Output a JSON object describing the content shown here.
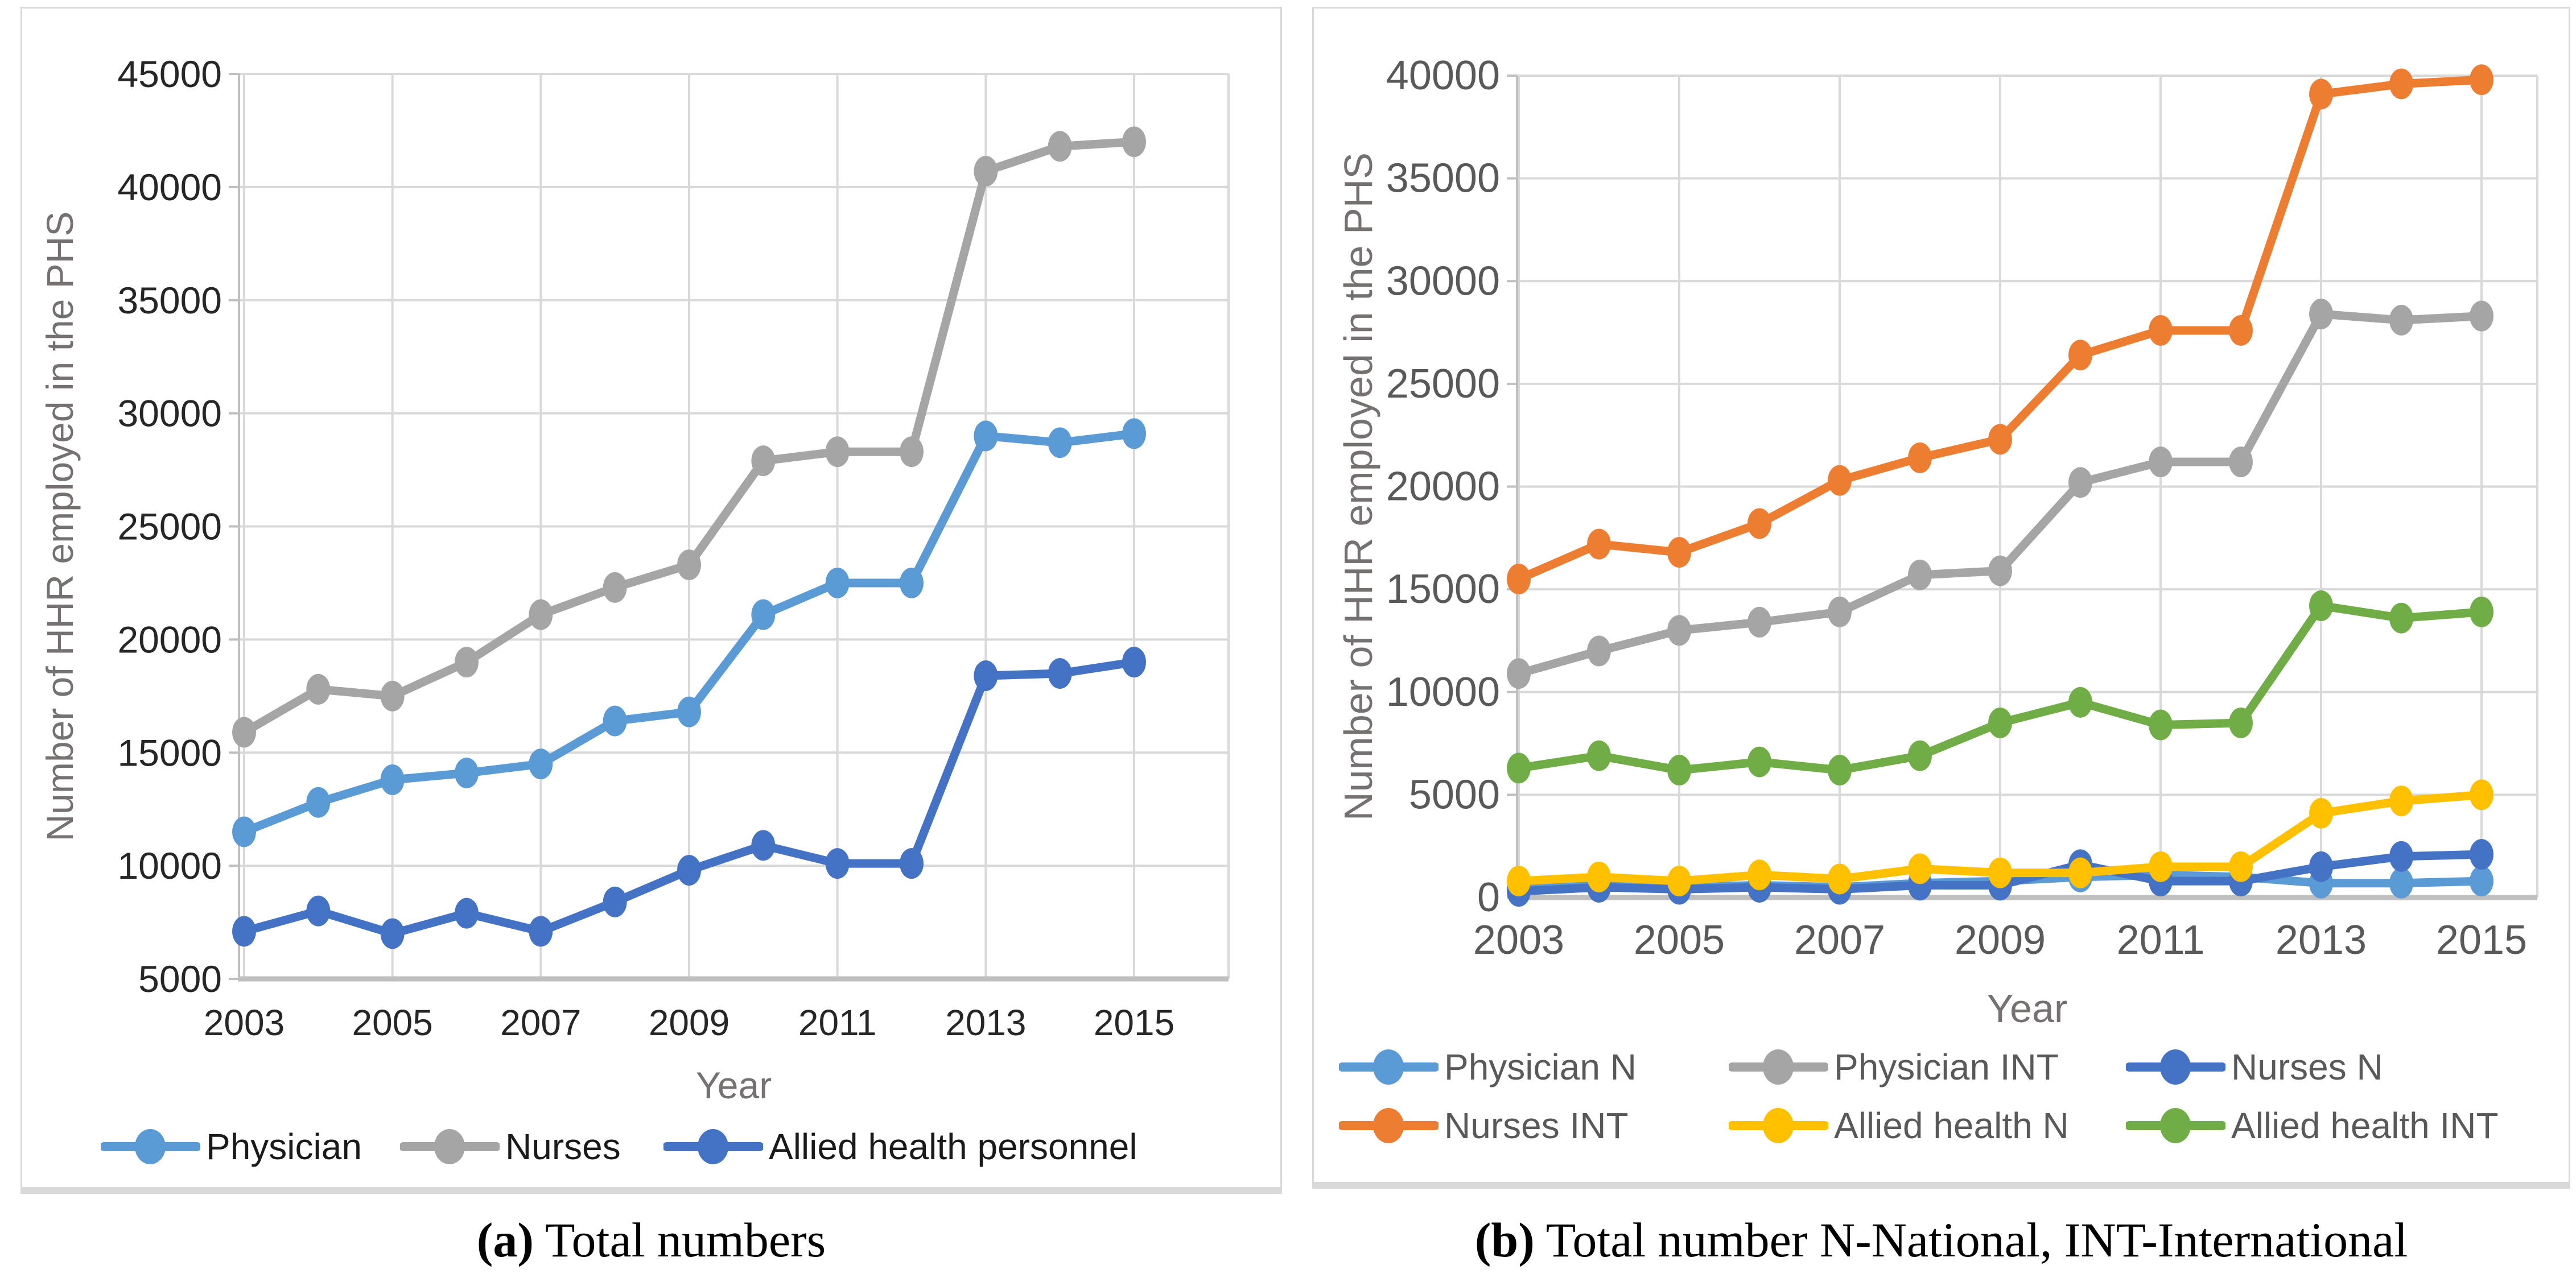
{
  "figure": {
    "panels": [
      {
        "id": "a",
        "caption_label": "(a)",
        "caption_text": "Total numbers",
        "x_axis_title": "Year",
        "y_axis_title": "Number of HHR employed in the PHS"
      },
      {
        "id": "b",
        "caption_label": "(b)",
        "caption_text": "Total number N-National, INT-International",
        "x_axis_title": "Year",
        "y_axis_title": "Number of HHR employed in the PHS"
      }
    ]
  },
  "colors": {
    "gridline": "#D9D9D9",
    "axis_line": "#BFBFBF",
    "tick_text_a": "#262626",
    "tick_text_b": "#595959",
    "axis_title_text": "#767171",
    "legend_text_a": "#1a1a1a",
    "legend_text_b": "#595959"
  },
  "chart_data": [
    {
      "type": "line",
      "title": "",
      "xlabel": "Year",
      "ylabel": "Number of HHR employed in the PHS",
      "x": [
        2003,
        2004,
        2005,
        2006,
        2007,
        2008,
        2009,
        2010,
        2011,
        2012,
        2013,
        2014,
        2015
      ],
      "xticks": [
        2003,
        2005,
        2007,
        2009,
        2011,
        2013,
        2015
      ],
      "ylim": [
        5000,
        45000
      ],
      "ytick_step": 5000,
      "grid": true,
      "legend_position": "bottom",
      "marker": "circle",
      "series": [
        {
          "name": "Physician",
          "color": "#5B9BD5",
          "values": [
            11500,
            12800,
            13800,
            14100,
            14500,
            16400,
            16800,
            21100,
            22500,
            22500,
            29000,
            28700,
            29100
          ]
        },
        {
          "name": "Nurses",
          "color": "#A5A5A5",
          "values": [
            15900,
            17800,
            17500,
            19000,
            21100,
            22300,
            23300,
            27900,
            28300,
            28300,
            40700,
            41800,
            42000
          ]
        },
        {
          "name": "Allied health personnel",
          "color": "#4472C4",
          "values": [
            7100,
            8000,
            7000,
            7900,
            7100,
            8400,
            9800,
            10900,
            10100,
            10100,
            18400,
            18500,
            19000
          ]
        }
      ]
    },
    {
      "type": "line",
      "title": "",
      "xlabel": "Year",
      "ylabel": "Number of HHR employed in the PHS",
      "x": [
        2003,
        2004,
        2005,
        2006,
        2007,
        2008,
        2009,
        2010,
        2011,
        2012,
        2013,
        2014,
        2015
      ],
      "xticks": [
        2003,
        2005,
        2007,
        2009,
        2011,
        2013,
        2015
      ],
      "ylim": [
        0,
        40000
      ],
      "ytick_step": 5000,
      "grid": true,
      "legend_position": "bottom",
      "marker": "circle",
      "series": [
        {
          "name": "Physician N",
          "color": "#5B9BD5",
          "values": [
            500,
            600,
            500,
            600,
            500,
            700,
            800,
            1000,
            1100,
            1000,
            700,
            700,
            800
          ]
        },
        {
          "name": "Physician INT",
          "color": "#A5A5A5",
          "values": [
            10900,
            12000,
            13000,
            13400,
            13900,
            15700,
            15900,
            20200,
            21200,
            21200,
            28400,
            28100,
            28300
          ]
        },
        {
          "name": "Nurses N",
          "color": "#4472C4",
          "values": [
            300,
            500,
            400,
            500,
            400,
            600,
            600,
            1600,
            800,
            800,
            1500,
            2000,
            2100
          ]
        },
        {
          "name": "Nurses INT",
          "color": "#ED7D31",
          "values": [
            15500,
            17200,
            16800,
            18200,
            20300,
            21400,
            22300,
            26400,
            27600,
            27600,
            39100,
            39600,
            39800
          ]
        },
        {
          "name": "Allied health  N",
          "color": "#FFC000",
          "values": [
            800,
            1000,
            800,
            1100,
            900,
            1400,
            1200,
            1200,
            1500,
            1500,
            4100,
            4700,
            5000
          ]
        },
        {
          "name": "Allied health  INT",
          "color": "#70AD47",
          "values": [
            6300,
            6900,
            6200,
            6600,
            6200,
            6900,
            8500,
            9500,
            8400,
            8500,
            14200,
            13600,
            13900
          ]
        }
      ]
    }
  ]
}
